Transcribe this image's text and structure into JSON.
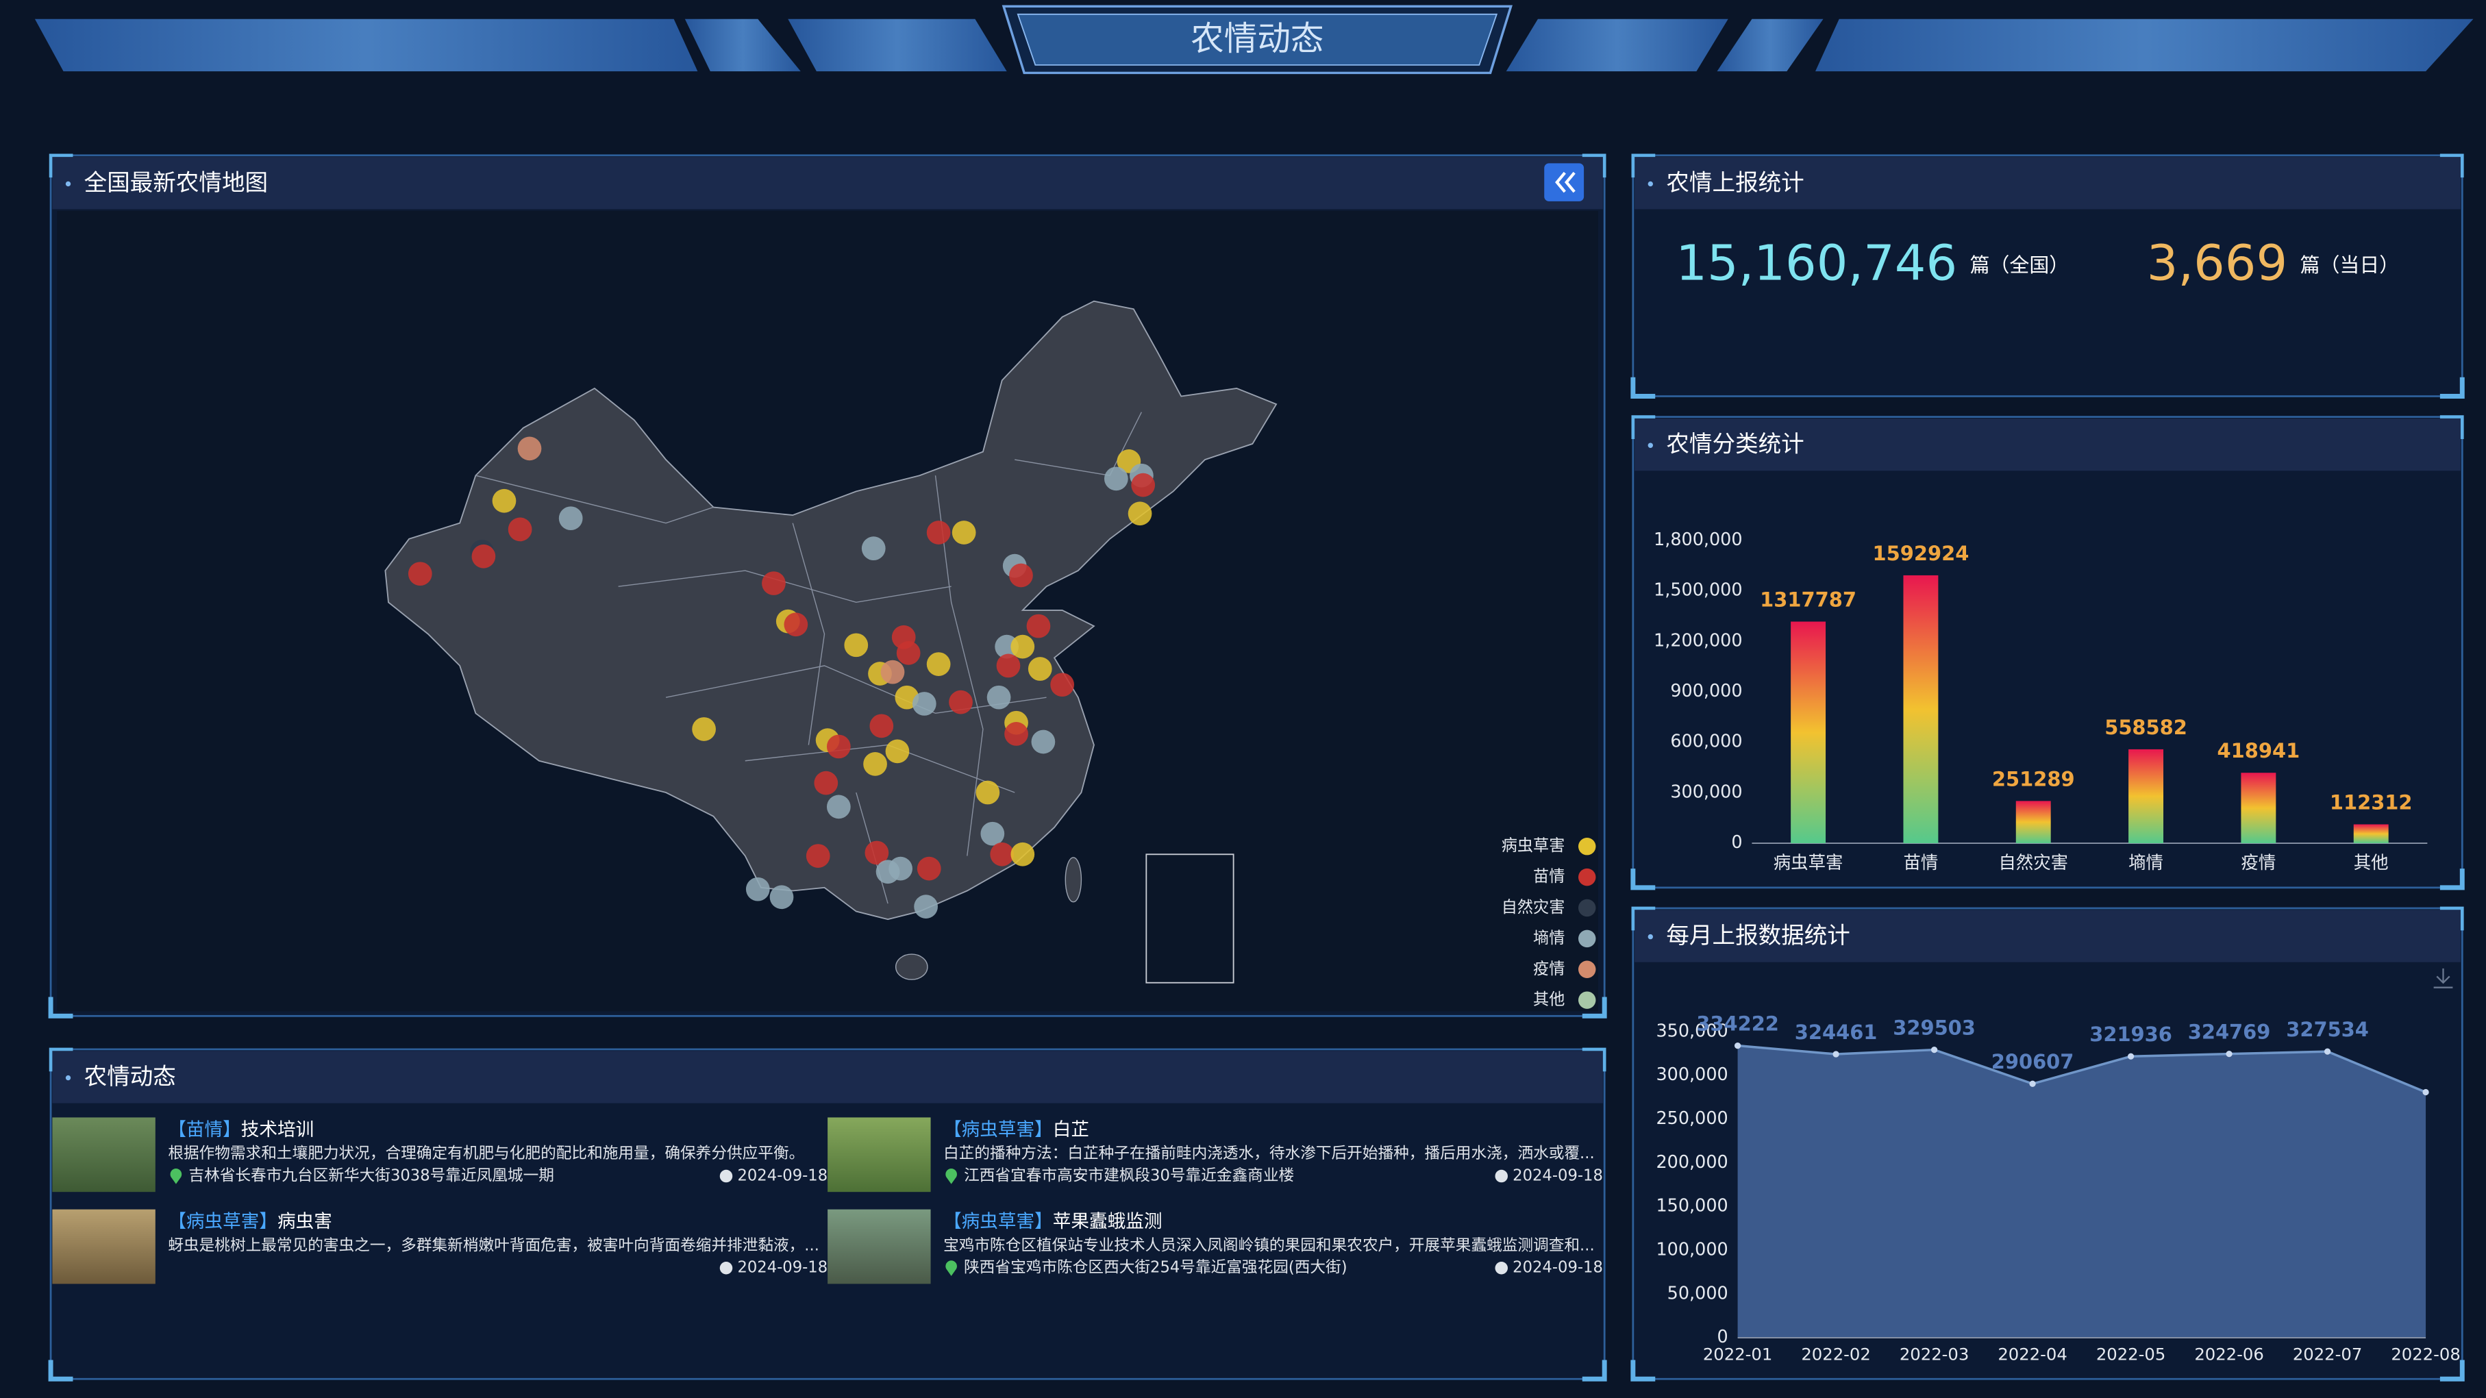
{
  "header": {
    "title": "农情动态"
  },
  "map_panel": {
    "title": "全国最新农情地图",
    "legend": [
      {
        "name": "病虫草害",
        "color": "#e3c22f"
      },
      {
        "name": "苗情",
        "color": "#c8332f"
      },
      {
        "name": "自然灾害",
        "color": "#2f3b4c"
      },
      {
        "name": "墒情",
        "color": "#8fa9b5"
      },
      {
        "name": "疫情",
        "color": "#d38b6d"
      },
      {
        "name": "其他",
        "color": "#a8c8a8"
      }
    ]
  },
  "stats_panel": {
    "title": "农情上报统计",
    "total": "15,160,746",
    "total_unit": "篇（全国）",
    "today": "3,669",
    "today_unit": "篇（当日）"
  },
  "chart_data": [
    {
      "type": "bar",
      "title": "农情分类统计",
      "categories": [
        "病虫草害",
        "苗情",
        "自然灾害",
        "墒情",
        "疫情",
        "其他"
      ],
      "values": [
        1317787,
        1592924,
        251289,
        558582,
        418941,
        112312
      ],
      "gradient": [
        "#e8174f",
        "#f2c230",
        "#55c98c"
      ],
      "label_color": "#f0a640",
      "ylim": [
        0,
        1800000
      ],
      "yticks": [
        0,
        {
          "value": 300000,
          "label": "300,000"
        },
        {
          "value": 600000,
          "label": "600,000"
        },
        {
          "value": 900000,
          "label": "900,000"
        },
        {
          "value": 1200000,
          "label": "1,200,000"
        },
        {
          "value": 1500000,
          "label": "1,500,000"
        },
        {
          "value": 1800000,
          "label": "1,800,000"
        }
      ]
    },
    {
      "type": "area",
      "title": "每月上报数据统计",
      "x": [
        "2022-01",
        "2022-02",
        "2022-03",
        "2022-04",
        "2022-05",
        "2022-06",
        "2022-07",
        "2022-08"
      ],
      "values": [
        334222,
        324461,
        329503,
        290607,
        321936,
        324769,
        327534,
        281000
      ],
      "value_labels": [
        "334222",
        "324461",
        "329503",
        "290607",
        "321936",
        "324769",
        "327534",
        null
      ],
      "color": "#3c5a8c",
      "line_color": "#7096c8",
      "label_color": "#5a80bf",
      "ylim": [
        0,
        350000
      ],
      "yticks": [
        0,
        {
          "value": 50000,
          "label": "50,000"
        },
        {
          "value": 100000,
          "label": "100,000"
        },
        {
          "value": 150000,
          "label": "150,000"
        },
        {
          "value": 200000,
          "label": "200,000"
        },
        {
          "value": 250000,
          "label": "250,000"
        },
        {
          "value": 300000,
          "label": "300,000"
        },
        {
          "value": 350000,
          "label": "350,000"
        }
      ]
    }
  ],
  "news": {
    "title": "农情动态",
    "items": [
      {
        "tag": "【苗情】",
        "title": "技术培训",
        "desc": "根据作物需求和土壤肥力状况，合理确定有机肥与化肥的配比和施用量，确保养分供应平衡。",
        "address": "吉林省长春市九台区新华大街3038号靠近凤凰城一期",
        "date": "2024-09-18"
      },
      {
        "tag": "【病虫草害】",
        "title": "白芷",
        "desc": "白芷的播种方法：白芷种子在播前畦内浇透水，待水渗下后开始播种，播后用水浇，洒水或覆...",
        "address": "江西省宜春市高安市建枫段30号靠近金鑫商业楼",
        "date": "2024-09-18"
      },
      {
        "tag": "【病虫草害】",
        "title": "病虫害",
        "desc": "蚜虫是桃树上最常见的害虫之一，多群集新梢嫩叶背面危害，被害叶向背面卷缩并排泄黏液，...",
        "date": "2024-09-18"
      },
      {
        "tag": "【病虫草害】",
        "title": "苹果蠹蛾监测",
        "desc": "宝鸡市陈仓区植保站专业技术人员深入凤阁岭镇的果园和果农农户，开展苹果蠹蛾监测调查和...",
        "address": "陕西省宝鸡市陈仓区西大街254号靠近富强花园(西大街)",
        "date": "2024-09-18"
      }
    ]
  }
}
